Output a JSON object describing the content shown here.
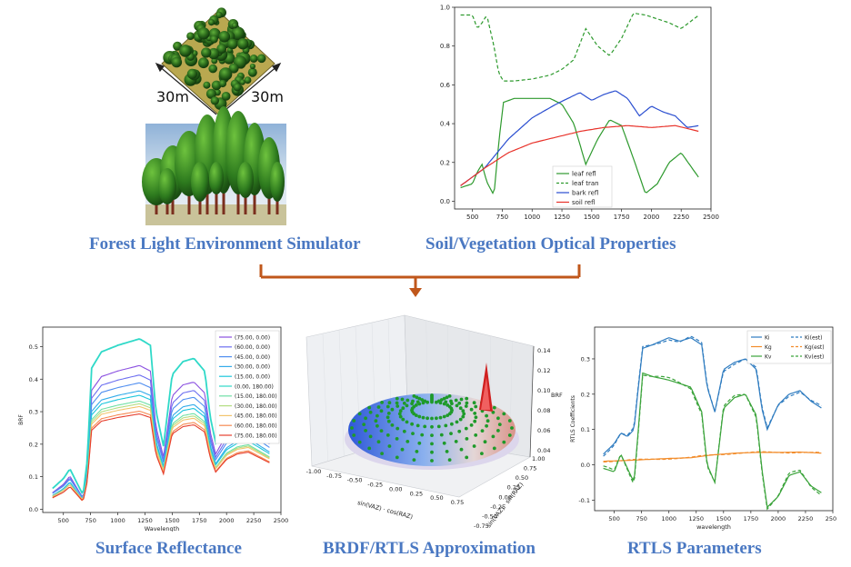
{
  "captions": {
    "simulator": "Forest Light Environment Simulator",
    "optical": "Soil/Vegetation Optical Properties",
    "surface": "Surface Reflectance",
    "brdf": "BRDF/RTLS Approximation",
    "rtls": "RTLS Parameters"
  },
  "scene": {
    "dim_left": "30m",
    "dim_right": "30m"
  },
  "colors": {
    "caption": "#4a78c2",
    "arrow": "#c0571b"
  },
  "chart_data": [
    {
      "id": "optical",
      "type": "line",
      "xlim": [
        350,
        2500
      ],
      "ylim": [
        -0.04,
        1.0
      ],
      "xticks": [
        500,
        750,
        1000,
        1250,
        1500,
        1750,
        2000,
        2250,
        2500
      ],
      "yticks": [
        0.0,
        0.2,
        0.4,
        0.6,
        0.8,
        1.0
      ],
      "ytick_labels": [
        "0.0",
        "0.2",
        "0.4",
        "0.6",
        "0.8",
        "1.0"
      ],
      "legend": "lower-right",
      "series": [
        {
          "name": "leaf refl",
          "color": "#2e9a2e",
          "dash": false,
          "x": [
            400,
            500,
            540,
            580,
            620,
            680,
            720,
            760,
            850,
            1000,
            1150,
            1250,
            1350,
            1450,
            1550,
            1650,
            1750,
            1850,
            1950,
            2050,
            2150,
            2250,
            2400
          ],
          "y": [
            0.07,
            0.09,
            0.15,
            0.19,
            0.1,
            0.03,
            0.3,
            0.51,
            0.53,
            0.53,
            0.53,
            0.5,
            0.4,
            0.19,
            0.32,
            0.42,
            0.39,
            0.22,
            0.04,
            0.09,
            0.2,
            0.25,
            0.12
          ]
        },
        {
          "name": "leaf tran",
          "color": "#2e9a2e",
          "dash": true,
          "x": [
            400,
            500,
            540,
            580,
            620,
            680,
            720,
            760,
            850,
            1000,
            1150,
            1250,
            1350,
            1450,
            1550,
            1650,
            1750,
            1850,
            1950,
            2050,
            2150,
            2250,
            2400
          ],
          "y": [
            0.96,
            0.96,
            0.89,
            0.92,
            0.96,
            0.8,
            0.66,
            0.62,
            0.62,
            0.63,
            0.65,
            0.68,
            0.73,
            0.89,
            0.8,
            0.75,
            0.84,
            0.97,
            0.96,
            0.94,
            0.92,
            0.89,
            0.96
          ]
        },
        {
          "name": "bark refl",
          "color": "#2a4ed0",
          "dash": false,
          "x": [
            400,
            600,
            800,
            1000,
            1200,
            1400,
            1500,
            1600,
            1700,
            1800,
            1900,
            2000,
            2100,
            2200,
            2300,
            2400
          ],
          "y": [
            0.08,
            0.17,
            0.32,
            0.43,
            0.5,
            0.56,
            0.52,
            0.55,
            0.57,
            0.53,
            0.44,
            0.49,
            0.46,
            0.44,
            0.38,
            0.39
          ]
        },
        {
          "name": "soil refl",
          "color": "#e8322a",
          "dash": false,
          "x": [
            400,
            600,
            800,
            1000,
            1200,
            1400,
            1600,
            1800,
            2000,
            2200,
            2400
          ],
          "y": [
            0.08,
            0.17,
            0.25,
            0.3,
            0.33,
            0.36,
            0.38,
            0.39,
            0.38,
            0.39,
            0.36
          ]
        }
      ]
    },
    {
      "id": "surface",
      "type": "line",
      "xlabel": "Wavelength",
      "ylabel": "BRF",
      "xlim": [
        310,
        2500
      ],
      "ylim": [
        -0.01,
        0.56
      ],
      "xticks": [
        500,
        750,
        1000,
        1250,
        1500,
        1750,
        2000,
        2250,
        2500
      ],
      "yticks": [
        0.0,
        0.1,
        0.2,
        0.3,
        0.4,
        0.5
      ],
      "ytick_labels": [
        "0.0",
        "0.1",
        "0.2",
        "0.3",
        "0.4",
        "0.5"
      ],
      "legend": "top-right",
      "profile_x": [
        400,
        500,
        560,
        620,
        680,
        720,
        760,
        850,
        1000,
        1100,
        1200,
        1300,
        1350,
        1420,
        1500,
        1600,
        1700,
        1800,
        1850,
        1900,
        2000,
        2100,
        2200,
        2300,
        2400
      ],
      "profile_y": [
        0.06,
        0.09,
        0.12,
        0.08,
        0.04,
        0.15,
        0.43,
        0.48,
        0.5,
        0.51,
        0.52,
        0.5,
        0.3,
        0.19,
        0.41,
        0.45,
        0.46,
        0.42,
        0.28,
        0.2,
        0.27,
        0.3,
        0.31,
        0.28,
        0.25
      ],
      "series": [
        {
          "name": "(75.00, 0.00)",
          "color": "#8a4fe0",
          "scale": 0.85
        },
        {
          "name": "(60.00, 0.00)",
          "color": "#6c6ef0",
          "scale": 0.79
        },
        {
          "name": "(45.00, 0.00)",
          "color": "#4f8ef0",
          "scale": 0.74
        },
        {
          "name": "(30.00, 0.00)",
          "color": "#33acea",
          "scale": 0.7
        },
        {
          "name": "(15.00, 0.00)",
          "color": "#1cc6dc",
          "scale": 0.67
        },
        {
          "name": "(0.00, 180.00)",
          "color": "#2fd9c8",
          "scale": 1.0
        },
        {
          "name": "(15.00, 180.00)",
          "color": "#6fe0a6",
          "scale": 0.64
        },
        {
          "name": "(30.00, 180.00)",
          "color": "#b4de82",
          "scale": 0.62
        },
        {
          "name": "(45.00, 180.00)",
          "color": "#f2c46e",
          "scale": 0.6
        },
        {
          "name": "(60.00, 180.00)",
          "color": "#f68a52",
          "scale": 0.58
        },
        {
          "name": "(75.00, 180.00)",
          "color": "#e63f2e",
          "scale": 0.56
        }
      ]
    },
    {
      "id": "brdf",
      "type": "scatter",
      "xlabel": "sin(VAZ) · cos(RAZ)",
      "ylabel": "sin(VAZ) · sin(RAZ)",
      "zlabel": "BRF",
      "xticks": [
        -1.0,
        -0.75,
        -0.5,
        -0.25,
        0.0,
        0.25,
        0.5,
        0.75
      ],
      "xtick_labels": [
        "-1.00",
        "-0.75",
        "-0.50",
        "-0.25",
        "0.00",
        "0.25",
        "0.50",
        "0.75"
      ],
      "yticks": [
        -0.75,
        -0.5,
        -0.25,
        0.0,
        0.25,
        0.5,
        0.75,
        1.0
      ],
      "ytick_labels": [
        "-0.75",
        "-0.50",
        "-0.25",
        "0.00",
        "0.25",
        "0.50",
        "0.75",
        "1.00"
      ],
      "zticks": [
        0.04,
        0.06,
        0.08,
        0.1,
        0.12,
        0.14
      ],
      "ztick_labels": [
        "0.04",
        "0.06",
        "0.08",
        "0.10",
        "0.12",
        "0.14"
      ],
      "rings": [
        0.25,
        0.4,
        0.55,
        0.7,
        0.85,
        1.0
      ],
      "spokes": 28
    },
    {
      "id": "rtls",
      "type": "line",
      "xlabel": "wavelength",
      "ylabel": "RTLS Coefficients",
      "xlim": [
        320,
        2500
      ],
      "ylim": [
        -0.13,
        0.39
      ],
      "xticks": [
        500,
        750,
        1000,
        1250,
        1500,
        1750,
        2000,
        2250,
        2500
      ],
      "yticks": [
        -0.1,
        0.0,
        0.1,
        0.2,
        0.3
      ],
      "ytick_labels": [
        "-0.1",
        "0.0",
        "0.1",
        "0.2",
        "0.3"
      ],
      "legend": "top-right",
      "series": [
        {
          "name": "Ki",
          "color": "#2f7cc0",
          "dash": false,
          "x": [
            400,
            500,
            560,
            620,
            680,
            720,
            760,
            850,
            1000,
            1100,
            1200,
            1300,
            1350,
            1420,
            1500,
            1600,
            1700,
            1800,
            1850,
            1900,
            2000,
            2100,
            2200,
            2300,
            2400
          ],
          "y": [
            0.03,
            0.06,
            0.09,
            0.08,
            0.1,
            0.22,
            0.33,
            0.34,
            0.36,
            0.35,
            0.36,
            0.34,
            0.22,
            0.15,
            0.27,
            0.29,
            0.3,
            0.27,
            0.16,
            0.1,
            0.17,
            0.2,
            0.21,
            0.18,
            0.16
          ]
        },
        {
          "name": "Kg",
          "color": "#f28c2a",
          "dash": false,
          "x": [
            400,
            600,
            800,
            1000,
            1200,
            1400,
            1600,
            1800,
            2000,
            2200,
            2400
          ],
          "y": [
            0.01,
            0.012,
            0.015,
            0.018,
            0.02,
            0.028,
            0.033,
            0.035,
            0.035,
            0.036,
            0.033
          ]
        },
        {
          "name": "Kv",
          "color": "#3aa33a",
          "dash": false,
          "x": [
            400,
            500,
            560,
            620,
            680,
            720,
            760,
            850,
            1000,
            1100,
            1200,
            1300,
            1350,
            1420,
            1500,
            1600,
            1700,
            1800,
            1850,
            1900,
            2000,
            2100,
            2200,
            2300,
            2400
          ],
          "y": [
            -0.01,
            -0.02,
            0.03,
            -0.01,
            -0.05,
            0.1,
            0.26,
            0.25,
            0.24,
            0.23,
            0.22,
            0.15,
            0.0,
            -0.05,
            0.16,
            0.19,
            0.2,
            0.14,
            -0.01,
            -0.12,
            -0.09,
            -0.03,
            -0.02,
            -0.06,
            -0.08
          ]
        },
        {
          "name": "Ki(est)",
          "color": "#2f7cc0",
          "dash": true,
          "of": 0,
          "shift": 0.006
        },
        {
          "name": "Kg(est)",
          "color": "#f28c2a",
          "dash": true,
          "of": 1,
          "shift": 0.002
        },
        {
          "name": "Kv(est)",
          "color": "#3aa33a",
          "dash": true,
          "of": 2,
          "shift": -0.007
        }
      ]
    }
  ]
}
